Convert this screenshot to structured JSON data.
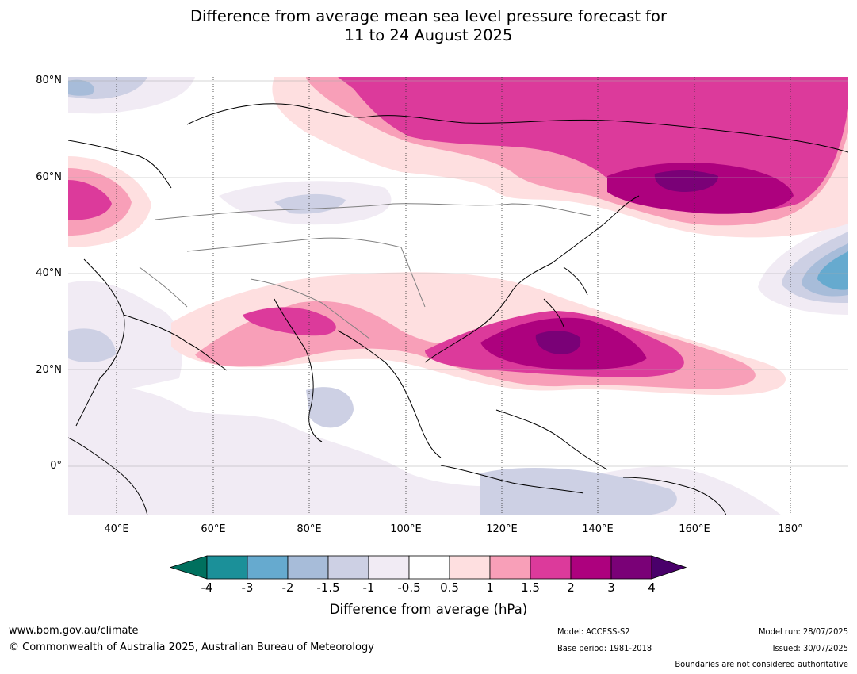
{
  "title": {
    "line1": "Difference from average mean sea level pressure forecast for",
    "line2": "11 to 24 August 2025"
  },
  "map": {
    "lat_labels": [
      "80°N",
      "60°N",
      "40°N",
      "20°N",
      "0°"
    ],
    "lon_labels": [
      "40°E",
      "60°E",
      "80°E",
      "100°E",
      "120°E",
      "140°E",
      "160°E",
      "180°"
    ]
  },
  "colorbar": {
    "ticks": [
      "-4",
      "-3",
      "-2",
      "-1.5",
      "-1",
      "-0.5",
      "0.5",
      "1",
      "1.5",
      "2",
      "3",
      "4"
    ],
    "label": "Difference from average (hPa)",
    "colors": {
      "below_min": "#00705e",
      "b1": "#1b9099",
      "b2": "#66aacf",
      "b3": "#a7bcd9",
      "b4": "#cdd0e4",
      "b5": "#f1ebf4",
      "b6": "#ffffff",
      "b7": "#fedfe0",
      "b8": "#f89fb8",
      "b9": "#dc3a9b",
      "b10": "#ad017e",
      "b11": "#7a0177",
      "above_max": "#49006a"
    }
  },
  "footer": {
    "website": "www.bom.gov.au/climate",
    "copyright": "© Commonwealth of Australia 2025, Australian Bureau of Meteorology",
    "model": "Model: ACCESS-S2",
    "base_period": "Base period: 1981-2018",
    "model_run": "Model run: 28/07/2025",
    "issued": "Issued: 30/07/2025",
    "disclaimer": "Boundaries are not considered authoritative"
  }
}
